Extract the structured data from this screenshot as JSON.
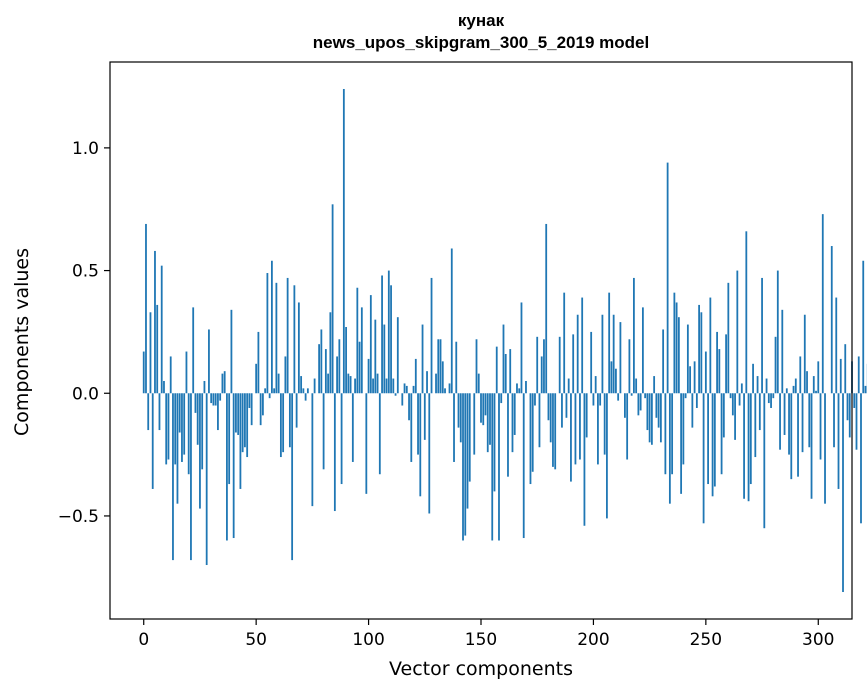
{
  "chart_data": {
    "type": "bar",
    "title": "кунак",
    "subtitle": "news_upos_skipgram_300_5_2019 model",
    "xlabel": "Vector components",
    "ylabel": "Components values",
    "xlim": [
      -15,
      315
    ],
    "ylim": [
      -0.92,
      1.35
    ],
    "xticks": [
      0,
      50,
      100,
      150,
      200,
      250,
      300
    ],
    "yticks": [
      -0.5,
      0.0,
      0.5,
      1.0
    ],
    "ytick_labels": [
      "−0.5",
      "0.0",
      "0.5",
      "1.0"
    ],
    "bar_color": "#1f77b4",
    "grid": false,
    "values": [
      0.17,
      0.69,
      -0.15,
      0.33,
      -0.39,
      0.58,
      0.36,
      -0.15,
      0.52,
      0.05,
      -0.29,
      -0.27,
      0.15,
      -0.68,
      -0.29,
      -0.45,
      -0.16,
      -0.28,
      -0.25,
      0.17,
      -0.33,
      -0.68,
      0.35,
      -0.08,
      -0.21,
      -0.47,
      -0.31,
      0.05,
      -0.7,
      0.26,
      -0.04,
      -0.05,
      -0.05,
      -0.15,
      -0.03,
      0.08,
      0.09,
      -0.6,
      -0.37,
      0.34,
      -0.59,
      -0.16,
      -0.17,
      -0.39,
      -0.24,
      -0.22,
      -0.26,
      -0.06,
      -0.13,
      0.0,
      0.12,
      0.25,
      -0.13,
      -0.09,
      0.02,
      0.49,
      -0.02,
      0.54,
      0.02,
      0.45,
      0.08,
      -0.26,
      -0.24,
      0.15,
      0.47,
      -0.22,
      -0.68,
      0.44,
      -0.14,
      0.37,
      0.07,
      0.02,
      -0.03,
      0.02,
      0.0,
      -0.46,
      0.06,
      0.0,
      0.2,
      0.26,
      -0.31,
      0.18,
      0.08,
      0.33,
      0.77,
      -0.48,
      0.15,
      0.22,
      -0.37,
      1.24,
      0.27,
      0.08,
      0.07,
      -0.28,
      0.06,
      0.43,
      0.21,
      0.35,
      0.0,
      -0.41,
      0.14,
      0.4,
      0.06,
      0.3,
      0.08,
      -0.33,
      0.48,
      0.28,
      0.06,
      0.5,
      0.44,
      0.06,
      -0.01,
      0.31,
      0.0,
      -0.05,
      0.04,
      0.03,
      -0.11,
      -0.28,
      0.03,
      0.14,
      -0.25,
      -0.42,
      0.28,
      -0.19,
      0.09,
      -0.49,
      0.47,
      0.0,
      0.08,
      0.22,
      0.22,
      0.13,
      0.02,
      0.0,
      0.04,
      0.59,
      -0.28,
      0.21,
      -0.14,
      -0.2,
      -0.6,
      -0.58,
      -0.47,
      -0.36,
      0.0,
      -0.25,
      0.22,
      0.08,
      -0.12,
      -0.13,
      -0.09,
      -0.24,
      -0.21,
      -0.6,
      -0.4,
      0.19,
      -0.6,
      -0.04,
      0.28,
      0.16,
      -0.34,
      0.18,
      -0.24,
      -0.17,
      0.04,
      0.02,
      0.37,
      -0.59,
      0.05,
      0.0,
      -0.37,
      -0.32,
      -0.05,
      0.23,
      -0.22,
      0.15,
      0.22,
      0.69,
      -0.11,
      -0.2,
      -0.3,
      -0.31,
      0.0,
      0.23,
      -0.14,
      0.41,
      -0.1,
      0.06,
      -0.36,
      0.24,
      -0.29,
      0.32,
      -0.27,
      0.39,
      -0.54,
      -0.18,
      0.0,
      0.25,
      -0.05,
      0.07,
      -0.29,
      -0.05,
      0.32,
      -0.25,
      -0.51,
      0.41,
      0.13,
      0.32,
      0.1,
      -0.03,
      0.29,
      0.0,
      -0.1,
      -0.27,
      0.22,
      -0.01,
      0.47,
      0.06,
      -0.09,
      -0.07,
      0.35,
      -0.02,
      -0.15,
      -0.2,
      -0.21,
      0.07,
      -0.1,
      -0.14,
      -0.2,
      0.26,
      -0.33,
      0.94,
      -0.45,
      -0.33,
      0.41,
      0.37,
      0.31,
      -0.41,
      -0.29,
      -0.02,
      0.28,
      0.11,
      -0.14,
      0.13,
      -0.06,
      0.36,
      0.33,
      -0.53,
      0.17,
      -0.37,
      0.39,
      -0.42,
      -0.38,
      0.25,
      0.18,
      -0.33,
      -0.18,
      0.24,
      0.45,
      -0.02,
      -0.09,
      -0.19,
      0.5,
      -0.05,
      0.04,
      -0.43,
      0.66,
      -0.44,
      -0.37,
      0.12,
      -0.26,
      0.07,
      -0.15,
      0.47,
      -0.55,
      0.06,
      -0.04,
      -0.06,
      -0.02,
      0.23,
      0.5,
      -0.23,
      0.34,
      -0.17,
      0.02,
      -0.25,
      -0.35,
      0.03,
      0.06,
      -0.34,
      0.15,
      -0.24,
      0.32,
      0.09,
      -0.22,
      -0.43,
      0.07,
      0.01,
      0.13,
      -0.27,
      0.73,
      -0.45,
      0.0,
      0.0,
      0.6,
      -0.22,
      0.39,
      -0.39,
      0.14,
      -0.81,
      0.2,
      -0.11,
      -0.18,
      0.13,
      -0.06,
      -0.23,
      0.15,
      -0.53,
      0.54,
      0.03,
      0.12,
      0.0,
      0.0
    ]
  }
}
